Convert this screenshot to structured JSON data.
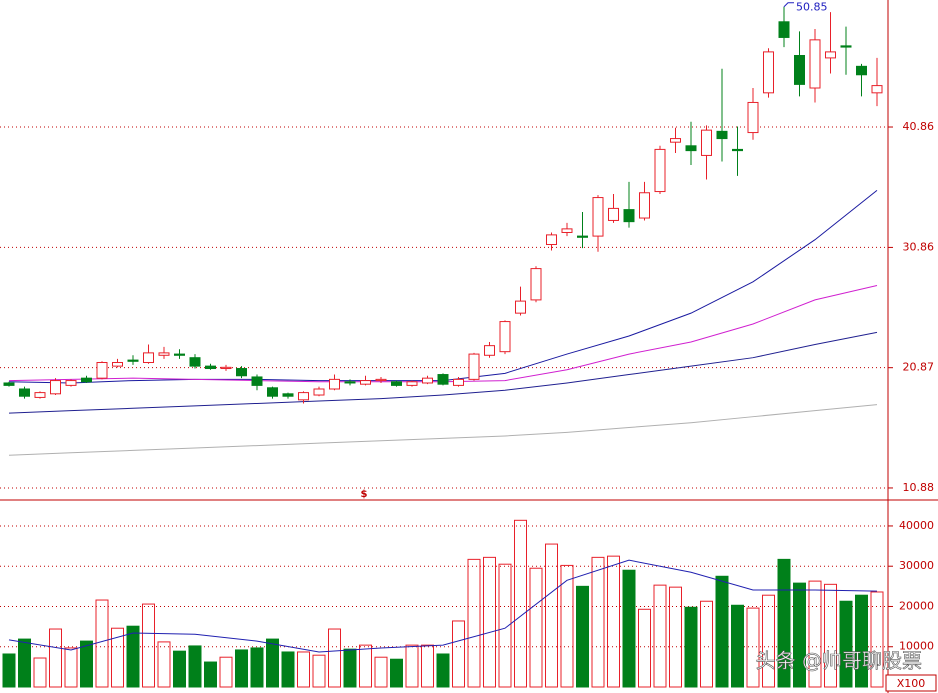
{
  "chart_data": [
    {
      "type": "candlestick",
      "open": [
        19.6,
        19.1,
        18.4,
        18.7,
        19.4,
        20.0,
        20.0,
        21.0,
        21.5,
        21.3,
        21.9,
        22.0,
        21.7,
        21.0,
        20.8,
        20.8,
        20.1,
        19.2,
        18.7,
        18.2,
        18.6,
        19.1,
        19.7,
        19.5,
        19.8,
        19.7,
        19.4,
        19.6,
        20.3,
        19.4,
        19.9,
        21.9,
        22.2,
        25.4,
        26.5,
        31.1,
        32.1,
        31.8,
        31.8,
        33.1,
        34.0,
        33.3,
        35.5,
        39.6,
        39.3,
        38.5,
        40.5,
        39.0,
        40.4,
        43.7,
        49.6,
        46.8,
        44.1,
        46.6,
        47.6,
        45.9,
        43.7
      ],
      "high": [
        19.7,
        19.3,
        18.9,
        20.0,
        19.9,
        20.2,
        21.4,
        21.6,
        21.9,
        22.8,
        22.6,
        22.4,
        22.0,
        21.2,
        21.1,
        21.0,
        20.3,
        19.3,
        18.8,
        18.9,
        19.3,
        20.3,
        19.9,
        20.2,
        20.1,
        19.8,
        19.8,
        20.2,
        20.4,
        20.1,
        22.1,
        23.0,
        24.8,
        27.6,
        29.3,
        32.1,
        32.9,
        33.8,
        35.2,
        35.3,
        36.3,
        36.3,
        39.3,
        40.8,
        41.3,
        41.0,
        45.7,
        40.9,
        44.1,
        47.4,
        50.85,
        48.8,
        49.0,
        50.4,
        49.2,
        46.1,
        46.6
      ],
      "low": [
        19.3,
        18.3,
        18.3,
        18.6,
        19.3,
        19.6,
        19.9,
        20.9,
        21.1,
        21.2,
        21.6,
        21.6,
        20.8,
        20.7,
        20.6,
        20.0,
        19.0,
        18.3,
        18.3,
        17.9,
        18.5,
        19.0,
        19.4,
        19.4,
        19.6,
        19.3,
        19.3,
        19.5,
        19.4,
        19.3,
        19.8,
        21.7,
        22.0,
        25.2,
        26.3,
        30.6,
        31.8,
        30.8,
        30.5,
        32.9,
        32.5,
        33.1,
        35.3,
        38.7,
        37.7,
        36.5,
        38.0,
        36.8,
        39.8,
        43.3,
        47.5,
        43.4,
        42.9,
        45.3,
        45.2,
        43.4,
        42.6
      ],
      "close": [
        19.4,
        18.5,
        18.8,
        19.8,
        19.8,
        19.7,
        21.3,
        21.3,
        21.4,
        22.1,
        22.1,
        21.9,
        21.0,
        20.8,
        20.9,
        20.2,
        19.4,
        18.5,
        18.5,
        18.8,
        19.1,
        19.9,
        19.6,
        19.8,
        19.9,
        19.4,
        19.7,
        20.0,
        19.5,
        19.9,
        22.0,
        22.7,
        24.7,
        26.4,
        29.1,
        31.9,
        32.4,
        31.7,
        35.0,
        34.1,
        33.0,
        35.4,
        39.0,
        39.9,
        38.9,
        40.6,
        39.9,
        38.9,
        42.9,
        47.1,
        48.3,
        44.4,
        48.1,
        47.1,
        47.5,
        45.2,
        44.3
      ],
      "up_color": "#e8202a",
      "down_color": "#00801a",
      "lines": [
        {
          "color": "#1a1aa0",
          "x": [
            0,
            4,
            8,
            12,
            16,
            20,
            24,
            28,
            32,
            36,
            40,
            44,
            48,
            52,
            56
          ],
          "values": [
            19.7,
            19.6,
            19.8,
            19.9,
            19.9,
            19.8,
            19.8,
            19.8,
            20.4,
            22.0,
            23.5,
            25.4,
            28.0,
            31.5,
            35.6
          ]
        },
        {
          "color": "#d020d0",
          "x": [
            0,
            4,
            8,
            12,
            16,
            20,
            24,
            28,
            32,
            36,
            40,
            44,
            48,
            52,
            56
          ],
          "values": [
            19.8,
            19.9,
            20.0,
            19.9,
            19.8,
            19.7,
            19.7,
            19.7,
            19.8,
            20.7,
            22.0,
            23.0,
            24.5,
            26.5,
            27.7
          ]
        },
        {
          "color": "#202090",
          "x": [
            0,
            4,
            8,
            12,
            16,
            20,
            24,
            28,
            32,
            36,
            40,
            44,
            48,
            52,
            56
          ],
          "values": [
            17.1,
            17.3,
            17.5,
            17.7,
            17.9,
            18.1,
            18.3,
            18.6,
            19.0,
            19.6,
            20.3,
            21.0,
            21.7,
            22.8,
            23.8
          ]
        },
        {
          "color": "#b0b0b0",
          "x": [
            0,
            4,
            8,
            12,
            16,
            20,
            24,
            28,
            32,
            36,
            40,
            44,
            48,
            52,
            56
          ],
          "values": [
            13.6,
            13.8,
            14.0,
            14.2,
            14.4,
            14.6,
            14.8,
            15.0,
            15.2,
            15.5,
            15.9,
            16.3,
            16.8,
            17.3,
            17.8
          ]
        }
      ],
      "ylim": [
        9.88,
        51.41
      ],
      "yticks": [
        10.88,
        20.87,
        30.86,
        40.86
      ],
      "grid": true,
      "annotation": "50.85",
      "marker": "$"
    },
    {
      "type": "bar",
      "values": [
        8200,
        11900,
        7200,
        14400,
        9700,
        11400,
        21600,
        14600,
        15100,
        20600,
        11200,
        8900,
        10200,
        6200,
        7400,
        9200,
        9700,
        11900,
        8700,
        8700,
        7900,
        14400,
        9400,
        10400,
        7400,
        6900,
        10400,
        10400,
        8200,
        16400,
        31700,
        32200,
        30500,
        41400,
        29500,
        35500,
        30200,
        25000,
        32200,
        32500,
        29000,
        19300,
        25300,
        24800,
        19800,
        21300,
        27500,
        20300,
        19600,
        22800,
        31700,
        25800,
        26300,
        25500,
        21300,
        22800,
        23600
      ],
      "lines": [
        {
          "color": "#2020b0",
          "x": [
            0,
            4,
            8,
            12,
            16,
            20,
            24,
            28,
            32,
            36,
            40,
            44,
            48,
            52,
            56
          ],
          "values": [
            11700,
            9200,
            13400,
            13100,
            11400,
            8700,
            9700,
            10400,
            14600,
            26500,
            31500,
            28500,
            24100,
            24100,
            23800
          ]
        }
      ],
      "ylim": [
        0,
        45700
      ],
      "yticks": [
        10000,
        20000,
        30000,
        40000
      ],
      "grid": true,
      "unit_label": "X100"
    }
  ],
  "watermark": "头条 @帅哥聊股票"
}
